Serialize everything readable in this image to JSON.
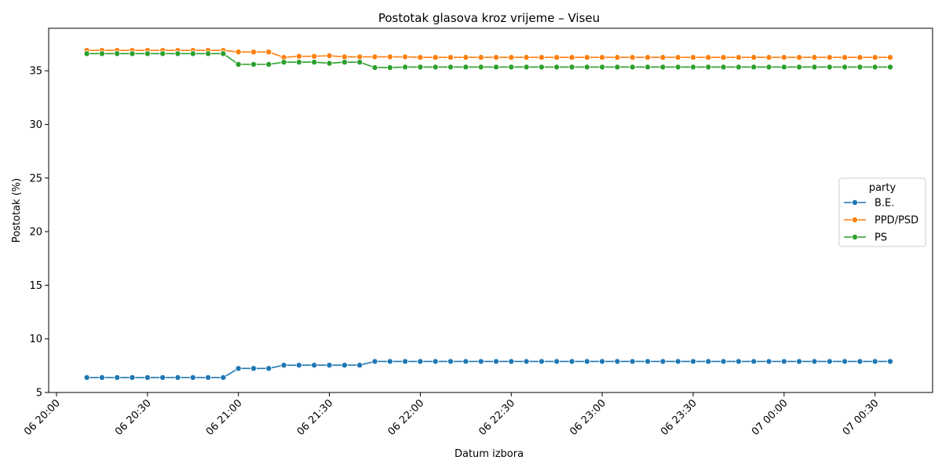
{
  "chart_data": {
    "type": "line",
    "title": "Postotak glasova kroz vrijeme – Viseu",
    "xlabel": "Datum izbora",
    "ylabel": "Postotak (%)",
    "x_axis": {
      "type": "datetime",
      "range": [
        "2023-01-06T20:00",
        "2023-01-07T00:35"
      ],
      "ticks": [
        {
          "time": "20:00",
          "label": "06 20:00"
        },
        {
          "time": "20:30",
          "label": "06 20:30"
        },
        {
          "time": "21:00",
          "label": "06 21:00"
        },
        {
          "time": "21:30",
          "label": "06 21:30"
        },
        {
          "time": "22:00",
          "label": "06 22:00"
        },
        {
          "time": "22:30",
          "label": "06 22:30"
        },
        {
          "time": "23:00",
          "label": "06 23:00"
        },
        {
          "time": "23:30",
          "label": "06 23:30"
        },
        {
          "time": "24:00",
          "label": "07 00:00"
        },
        {
          "time": "24:30",
          "label": "07 00:30"
        }
      ]
    },
    "y_axis": {
      "range": [
        5,
        37.5
      ],
      "ticks": [
        5,
        10,
        15,
        20,
        25,
        30,
        35
      ]
    },
    "x": [
      "20:10",
      "20:15",
      "20:20",
      "20:25",
      "20:30",
      "20:35",
      "20:40",
      "20:45",
      "20:50",
      "20:55",
      "21:00",
      "21:05",
      "21:10",
      "21:15",
      "21:20",
      "21:25",
      "21:30",
      "21:35",
      "21:40",
      "21:45",
      "21:50",
      "21:55",
      "22:00",
      "22:05",
      "22:10",
      "22:15",
      "22:20",
      "22:25",
      "22:30",
      "22:35",
      "22:40",
      "22:45",
      "22:50",
      "22:55",
      "23:00",
      "23:05",
      "23:10",
      "23:15",
      "23:20",
      "23:25",
      "23:30",
      "23:35",
      "23:40",
      "23:45",
      "23:50",
      "23:55",
      "00:00",
      "00:05",
      "00:10",
      "00:15",
      "00:20",
      "00:25",
      "00:30",
      "00:35"
    ],
    "legend": {
      "title": "party",
      "position": "center-right"
    },
    "grid": false,
    "series": [
      {
        "name": "B.E.",
        "color": "#1f77b4",
        "values": [
          6.4,
          6.4,
          6.4,
          6.4,
          6.4,
          6.4,
          6.4,
          6.4,
          6.4,
          6.4,
          7.25,
          7.25,
          7.25,
          7.55,
          7.55,
          7.55,
          7.55,
          7.55,
          7.55,
          7.9,
          7.9,
          7.9,
          7.9,
          7.9,
          7.9,
          7.9,
          7.9,
          7.9,
          7.9,
          7.9,
          7.9,
          7.9,
          7.9,
          7.9,
          7.9,
          7.9,
          7.9,
          7.9,
          7.9,
          7.9,
          7.9,
          7.9,
          7.9,
          7.9,
          7.9,
          7.9,
          7.9,
          7.9,
          7.9,
          7.9,
          7.9,
          7.9,
          7.9,
          7.9
        ]
      },
      {
        "name": "PPD/PSD",
        "color": "#ff7f0e",
        "values": [
          36.9,
          36.9,
          36.9,
          36.9,
          36.9,
          36.9,
          36.9,
          36.9,
          36.9,
          36.9,
          36.75,
          36.75,
          36.75,
          36.25,
          36.35,
          36.35,
          36.4,
          36.3,
          36.3,
          36.3,
          36.3,
          36.3,
          36.25,
          36.25,
          36.25,
          36.25,
          36.25,
          36.25,
          36.25,
          36.25,
          36.25,
          36.25,
          36.25,
          36.25,
          36.25,
          36.25,
          36.25,
          36.25,
          36.25,
          36.25,
          36.25,
          36.25,
          36.25,
          36.25,
          36.25,
          36.25,
          36.25,
          36.25,
          36.25,
          36.25,
          36.25,
          36.25,
          36.25,
          36.25
        ]
      },
      {
        "name": "PS",
        "color": "#2ca02c",
        "values": [
          36.6,
          36.6,
          36.6,
          36.6,
          36.6,
          36.6,
          36.6,
          36.6,
          36.6,
          36.6,
          35.6,
          35.6,
          35.6,
          35.8,
          35.8,
          35.8,
          35.7,
          35.8,
          35.8,
          35.3,
          35.3,
          35.35,
          35.35,
          35.35,
          35.35,
          35.35,
          35.35,
          35.35,
          35.35,
          35.35,
          35.35,
          35.35,
          35.35,
          35.35,
          35.35,
          35.35,
          35.35,
          35.35,
          35.35,
          35.35,
          35.35,
          35.35,
          35.35,
          35.35,
          35.35,
          35.35,
          35.35,
          35.35,
          35.35,
          35.35,
          35.35,
          35.35,
          35.35,
          35.35
        ]
      }
    ]
  }
}
